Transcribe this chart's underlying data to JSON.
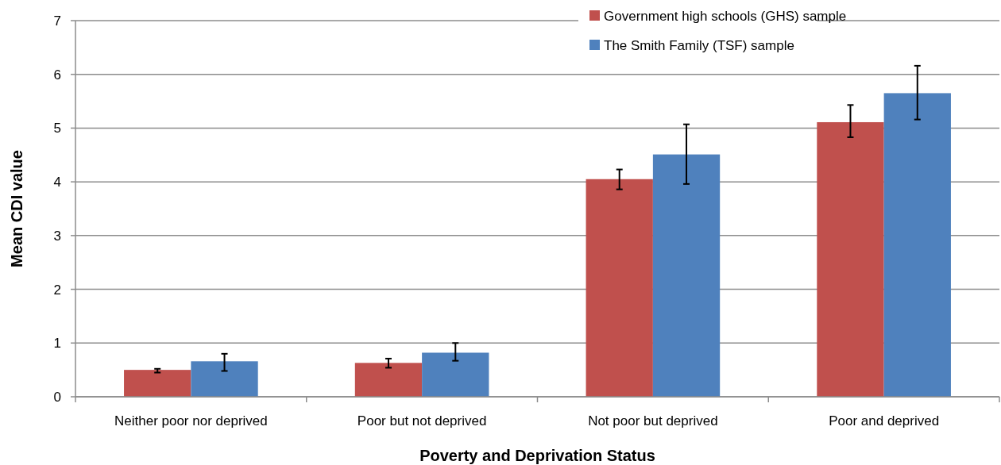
{
  "chart_data": {
    "type": "bar",
    "xlabel": "Poverty and Deprivation Status",
    "ylabel": "Mean CDI value",
    "categories": [
      "Neither poor nor deprived",
      "Poor but not deprived",
      "Not poor but deprived",
      "Poor and deprived"
    ],
    "series": [
      {
        "name": "Government high schools (GHS) sample",
        "color": "#c0504d",
        "values": [
          0.5,
          0.63,
          4.05,
          5.11
        ],
        "errors": [
          [
            0.45,
            0.52
          ],
          [
            0.54,
            0.71
          ],
          [
            3.86,
            4.23
          ],
          [
            4.83,
            5.43
          ]
        ]
      },
      {
        "name": "The Smith Family (TSF) sample",
        "color": "#4f81bd",
        "values": [
          0.66,
          0.82,
          4.51,
          5.65
        ],
        "errors": [
          [
            0.48,
            0.8
          ],
          [
            0.67,
            1.0
          ],
          [
            3.96,
            5.07
          ],
          [
            5.16,
            6.16
          ]
        ]
      }
    ],
    "ylim": [
      0,
      7
    ],
    "yticks": [
      0,
      1,
      2,
      3,
      4,
      5,
      6,
      7
    ],
    "grid": "y",
    "legend": "top right"
  }
}
